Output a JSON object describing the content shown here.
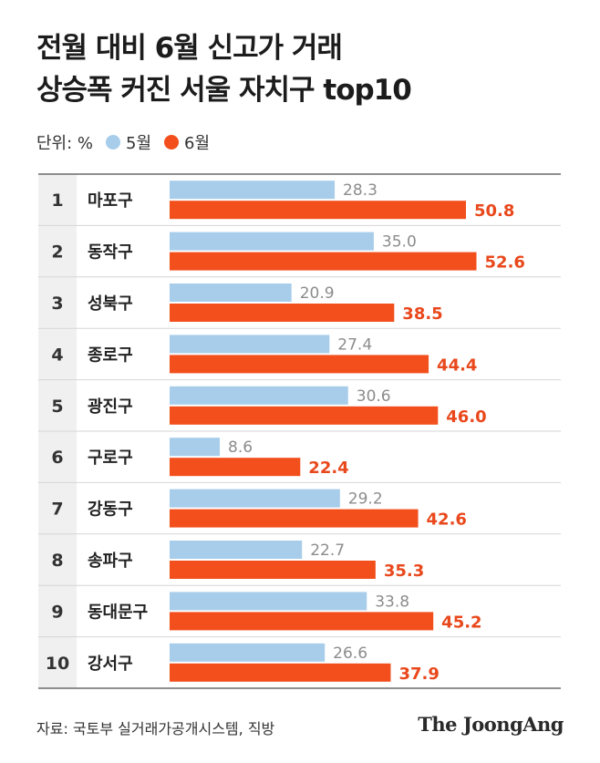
{
  "title_lines": [
    "전월 대비 6월 신고가 거래",
    "상승폭 커진 서울 자치구 top10"
  ],
  "unit_label": "단위: %",
  "source": "자료: 국토부 실거래가공개시스템, 직방",
  "logo": "The JoongAng",
  "colors": {
    "may": "#a7cdeb",
    "june": "#f24f1c",
    "may_text": "#8c8c8c",
    "june_text": "#e9481c"
  },
  "chart_data": {
    "type": "bar",
    "orientation": "horizontal",
    "ranks": [
      "1",
      "2",
      "3",
      "4",
      "5",
      "6",
      "7",
      "8",
      "9",
      "10"
    ],
    "categories": [
      "마포구",
      "동작구",
      "성북구",
      "종로구",
      "광진구",
      "구로구",
      "강동구",
      "송파구",
      "동대문구",
      "강서구"
    ],
    "series": [
      {
        "name": "5월",
        "values": [
          28.3,
          35.0,
          20.9,
          27.4,
          30.6,
          8.6,
          29.2,
          22.7,
          33.8,
          26.6
        ],
        "labels": [
          "28.3",
          "35.0",
          "20.9",
          "27.4",
          "30.6",
          "8.6",
          "29.2",
          "22.7",
          "33.8",
          "26.6"
        ]
      },
      {
        "name": "6월",
        "values": [
          50.8,
          52.6,
          38.5,
          44.4,
          46.0,
          22.4,
          42.6,
          35.3,
          45.2,
          37.9
        ],
        "labels": [
          "50.8",
          "52.6",
          "38.5",
          "44.4",
          "46.0",
          "22.4",
          "42.6",
          "35.3",
          "45.2",
          "37.9"
        ]
      }
    ],
    "xlim": [
      0,
      70
    ],
    "grid": false,
    "legend": "top-left"
  }
}
